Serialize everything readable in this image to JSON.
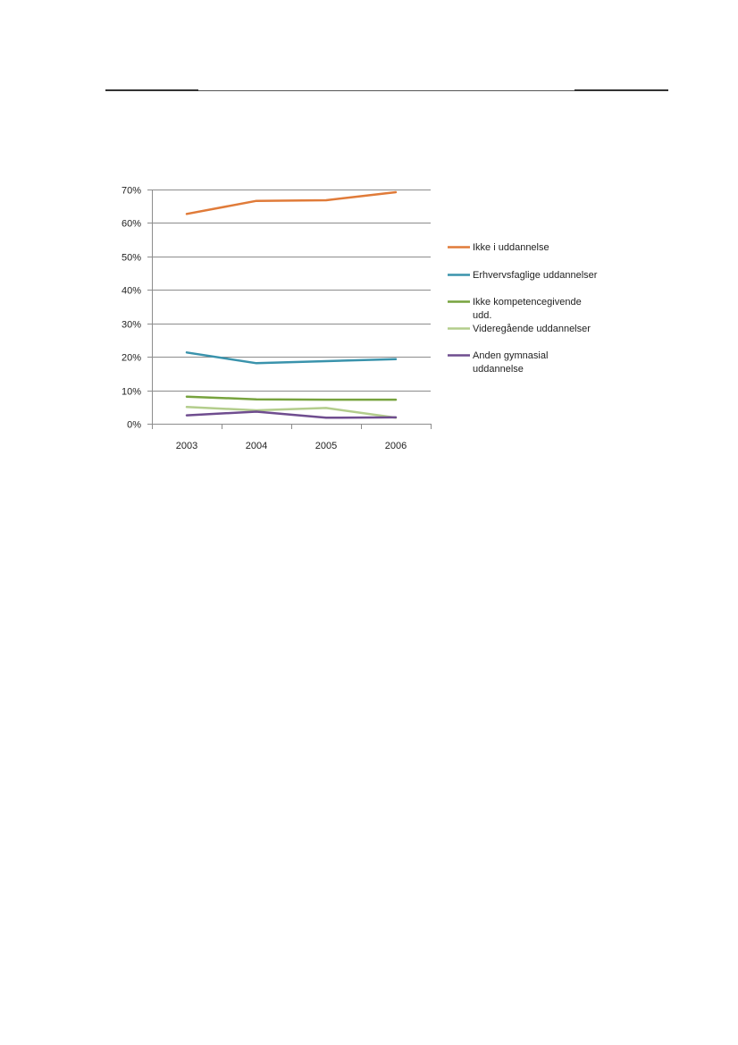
{
  "chart_data": {
    "type": "line",
    "categories": [
      "2003",
      "2004",
      "2005",
      "2006"
    ],
    "ylim": [
      0,
      0.7
    ],
    "yticks": [
      0,
      0.1,
      0.2,
      0.3,
      0.4,
      0.5,
      0.6,
      0.7
    ],
    "ytick_labels": [
      "0%",
      "10%",
      "20%",
      "30%",
      "40%",
      "50%",
      "60%",
      "70%"
    ],
    "grid": true,
    "legend_position": "right",
    "title": "",
    "xlabel": "",
    "ylabel": "",
    "series": [
      {
        "name": "Ikke i uddannelse",
        "name_lines": [
          "Ikke i uddannelse"
        ],
        "color": "#e07b39",
        "values": [
          0.627,
          0.666,
          0.668,
          0.692
        ]
      },
      {
        "name": "Erhvervsfaglige uddannelser",
        "name_lines": [
          "Erhvervsfaglige uddannelser"
        ],
        "color": "#3a93ac",
        "values": [
          0.213,
          0.181,
          0.187,
          0.193
        ]
      },
      {
        "name": "Ikke kompetencegivende udd.",
        "name_lines": [
          "Ikke kompetencegivende",
          "udd."
        ],
        "color": "#77a33e",
        "values": [
          0.081,
          0.073,
          0.072,
          0.072
        ]
      },
      {
        "name": "Videregående uddannelser",
        "name_lines": [
          "Videregående uddannelser"
        ],
        "color": "#b3cd8c",
        "values": [
          0.05,
          0.04,
          0.047,
          0.018
        ]
      },
      {
        "name": "Anden gymnasial uddannelse",
        "name_lines": [
          "Anden gymnasial",
          "uddannelse"
        ],
        "color": "#6f4d8f",
        "values": [
          0.025,
          0.036,
          0.018,
          0.019
        ]
      }
    ]
  }
}
